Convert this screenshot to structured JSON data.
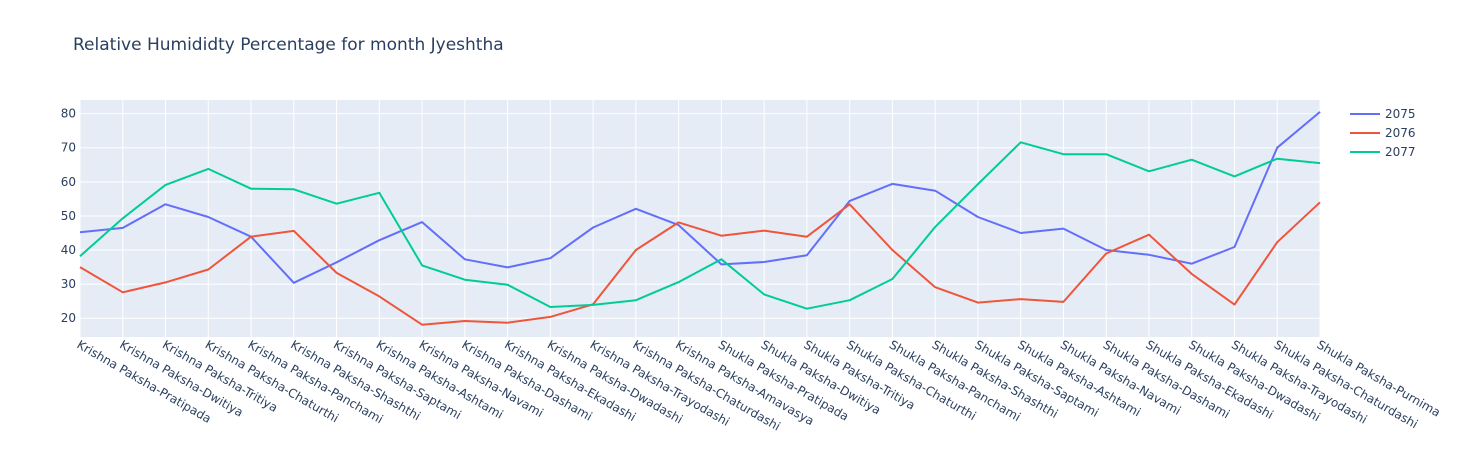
{
  "chart_data": {
    "type": "line",
    "title": "Relative Humididty Percentage for month Jyeshtha",
    "xlabel": "",
    "ylabel": "",
    "ylim": [
      14.5,
      84
    ],
    "yticks": [
      20,
      30,
      40,
      50,
      60,
      70,
      80
    ],
    "grid": true,
    "legend_position": "top-right",
    "categories": [
      "Krishna Paksha-Pratipada",
      "Krishna Paksha-Dwitiya",
      "Krishna Paksha-Tritiya",
      "Krishna Paksha-Chaturthi",
      "Krishna Paksha-Panchami",
      "Krishna Paksha-Shashthi",
      "Krishna Paksha-Saptami",
      "Krishna Paksha-Ashtami",
      "Krishna Paksha-Navami",
      "Krishna Paksha-Dashami",
      "Krishna Paksha-Ekadashi",
      "Krishna Paksha-Dwadashi",
      "Krishna Paksha-Trayodashi",
      "Krishna Paksha-Chaturdashi",
      "Krishna Paksha-Amavasya",
      "Shukla Paksha-Pratipada",
      "Shukla Paksha-Dwitiya",
      "Shukla Paksha-Tritiya",
      "Shukla Paksha-Chaturthi",
      "Shukla Paksha-Panchami",
      "Shukla Paksha-Shashthi",
      "Shukla Paksha-Saptami",
      "Shukla Paksha-Ashtami",
      "Shukla Paksha-Navami",
      "Shukla Paksha-Dashami",
      "Shukla Paksha-Ekadashi",
      "Shukla Paksha-Dwadashi",
      "Shukla Paksha-Trayodashi",
      "Shukla Paksha-Chaturdashi",
      "Shukla Paksha-Purnima"
    ],
    "series": [
      {
        "name": "2075",
        "color": "#636efa",
        "values": [
          45.2,
          46.5,
          53.4,
          49.7,
          43.9,
          30.4,
          36.4,
          42.9,
          48.2,
          37.3,
          34.9,
          37.6,
          46.6,
          52.1,
          47.3,
          35.8,
          36.5,
          38.5,
          54.4,
          59.4,
          57.4,
          49.7,
          45.0,
          46.3,
          40.0,
          38.6,
          36.0,
          40.9,
          70.0,
          80.5
        ]
      },
      {
        "name": "2076",
        "color": "#ef553b",
        "values": [
          35.0,
          27.6,
          30.5,
          34.3,
          43.9,
          45.6,
          33.3,
          26.4,
          18.1,
          19.2,
          18.7,
          20.4,
          24.1,
          40.0,
          48.1,
          44.2,
          45.7,
          43.9,
          53.4,
          40.0,
          29.1,
          24.6,
          25.6,
          24.8,
          39.0,
          44.5,
          33.0,
          24.0,
          42.3,
          54.0
        ]
      },
      {
        "name": "2077",
        "color": "#00cc96",
        "values": [
          38.2,
          49.3,
          59.1,
          63.8,
          58.0,
          57.8,
          53.6,
          56.8,
          35.5,
          31.3,
          29.8,
          23.3,
          23.9,
          25.3,
          30.6,
          37.3,
          27.0,
          22.8,
          25.3,
          31.5,
          46.8,
          59.3,
          71.6,
          68.1,
          68.1,
          63.1,
          66.5,
          61.6,
          66.8,
          65.5
        ]
      }
    ]
  }
}
